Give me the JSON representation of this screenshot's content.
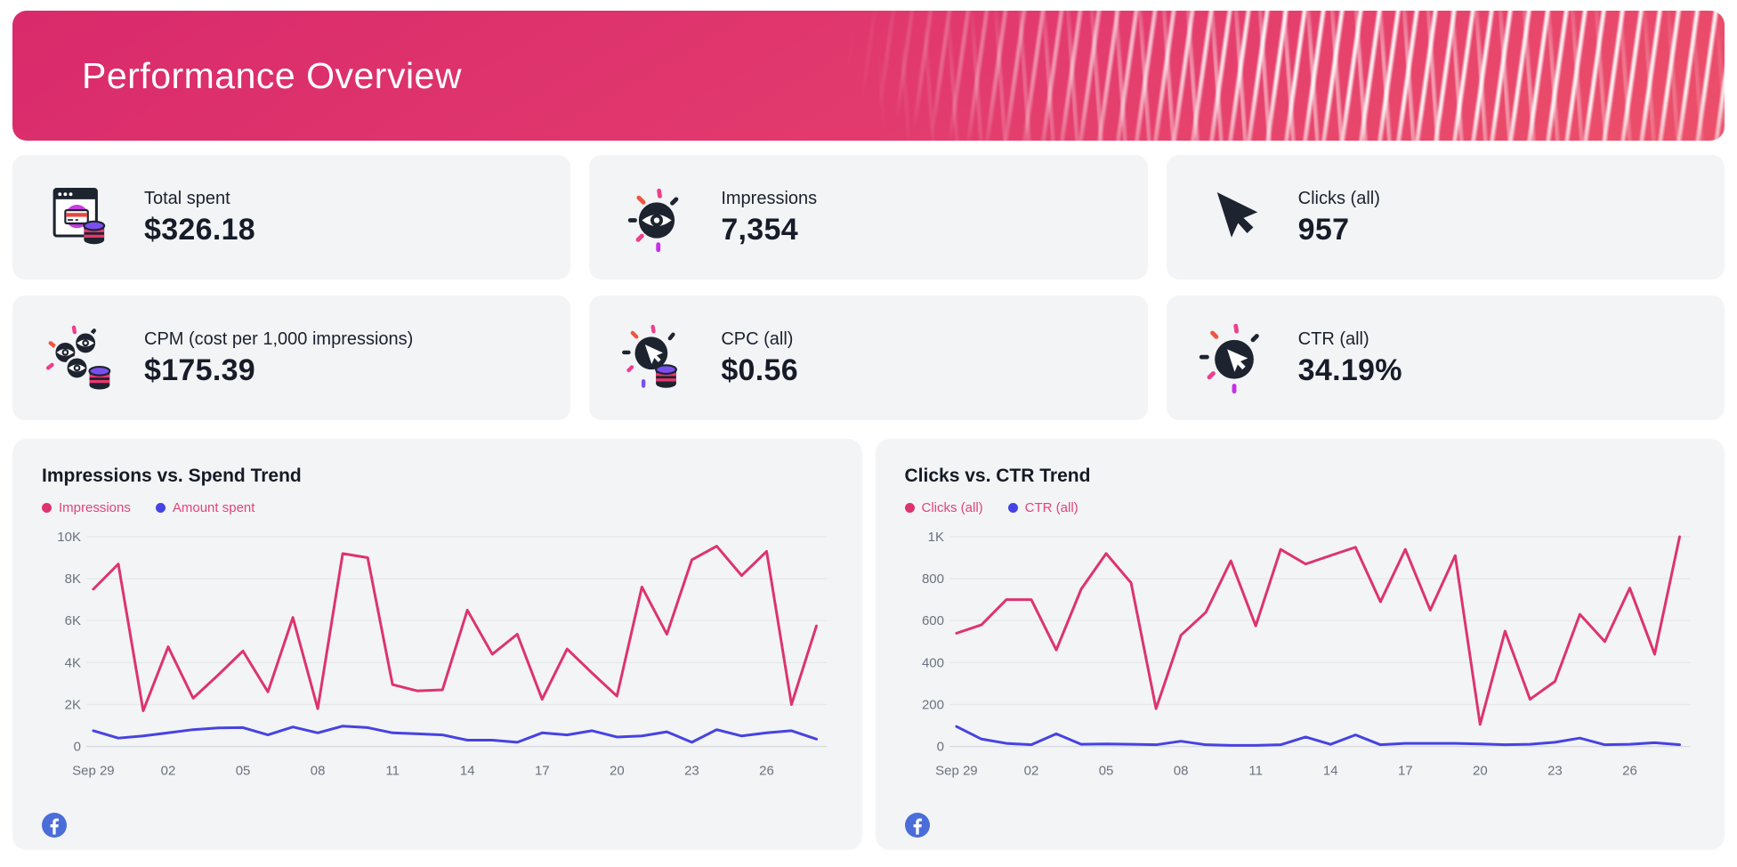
{
  "header": {
    "title": "Performance Overview"
  },
  "kpis": [
    {
      "label": "Total spent",
      "value": "$326.18",
      "icon": "spend-icon"
    },
    {
      "label": "Impressions",
      "value": "7,354",
      "icon": "impressions-eye-icon"
    },
    {
      "label": "Clicks (all)",
      "value": "957",
      "icon": "cursor-icon"
    },
    {
      "label": "CPM (cost per 1,000 impressions)",
      "value": "$175.39",
      "icon": "cpm-eyes-coins-icon"
    },
    {
      "label": "CPC (all)",
      "value": "$0.56",
      "icon": "cpc-cursor-coins-icon"
    },
    {
      "label": "CTR (all)",
      "value": "34.19%",
      "icon": "ctr-cursor-icon"
    }
  ],
  "colors": {
    "accent_pink": "#dd3370",
    "accent_blue": "#4643e2",
    "legend_text": "#e0457b",
    "card_bg": "#f3f4f6",
    "banner_gradient_start": "#d92a6b",
    "banner_gradient_end": "#ec5069",
    "facebook_blue": "#4a6dd9",
    "grid_line": "#e6e8ec",
    "axis_text": "#6b7280"
  },
  "chart_data": [
    {
      "type": "line",
      "title": "Impressions vs. Spend Trend",
      "x_tick_labels": [
        "Sep 29",
        "02",
        "05",
        "08",
        "11",
        "14",
        "17",
        "20",
        "23",
        "26"
      ],
      "x_tick_indices": [
        0,
        3,
        6,
        9,
        12,
        15,
        18,
        21,
        24,
        27
      ],
      "ylim": [
        0,
        10000
      ],
      "y_ticks": [
        {
          "v": 0,
          "label": "0"
        },
        {
          "v": 2000,
          "label": "2K"
        },
        {
          "v": 4000,
          "label": "4K"
        },
        {
          "v": 6000,
          "label": "6K"
        },
        {
          "v": 8000,
          "label": "8K"
        },
        {
          "v": 10000,
          "label": "10K"
        }
      ],
      "grid": true,
      "legend_position": "top-left",
      "source_icon": "facebook",
      "series": [
        {
          "name": "Impressions",
          "color": "#dd3370",
          "values": [
            7500,
            8700,
            1700,
            4750,
            2300,
            3400,
            4550,
            2600,
            6150,
            1800,
            9200,
            9000,
            2950,
            2650,
            2700,
            6500,
            4400,
            5350,
            2250,
            4650,
            3500,
            2400,
            7600,
            5350,
            8900,
            9550,
            8150,
            9300,
            2000,
            5750
          ]
        },
        {
          "name": "Amount spent",
          "color": "#4643e2",
          "values": [
            750,
            400,
            500,
            650,
            800,
            880,
            900,
            550,
            930,
            650,
            970,
            900,
            650,
            600,
            550,
            300,
            300,
            200,
            650,
            550,
            750,
            450,
            500,
            700,
            200,
            800,
            500,
            650,
            750,
            350
          ]
        }
      ]
    },
    {
      "type": "line",
      "title": "Clicks vs. CTR Trend",
      "x_tick_labels": [
        "Sep 29",
        "02",
        "05",
        "08",
        "11",
        "14",
        "17",
        "20",
        "23",
        "26"
      ],
      "x_tick_indices": [
        0,
        3,
        6,
        9,
        12,
        15,
        18,
        21,
        24,
        27
      ],
      "ylim": [
        0,
        1000
      ],
      "y_ticks": [
        {
          "v": 0,
          "label": "0"
        },
        {
          "v": 200,
          "label": "200"
        },
        {
          "v": 400,
          "label": "400"
        },
        {
          "v": 600,
          "label": "600"
        },
        {
          "v": 800,
          "label": "800"
        },
        {
          "v": 1000,
          "label": "1K"
        }
      ],
      "grid": true,
      "legend_position": "top-left",
      "source_icon": "facebook",
      "series": [
        {
          "name": "Clicks (all)",
          "color": "#dd3370",
          "values": [
            540,
            580,
            700,
            700,
            460,
            750,
            920,
            780,
            180,
            530,
            640,
            885,
            575,
            940,
            870,
            910,
            950,
            690,
            940,
            650,
            910,
            105,
            550,
            225,
            310,
            630,
            500,
            755,
            440,
            1000
          ]
        },
        {
          "name": "CTR (all)",
          "color": "#4643e2",
          "values": [
            95,
            35,
            15,
            8,
            60,
            10,
            12,
            10,
            8,
            25,
            8,
            5,
            5,
            8,
            45,
            10,
            55,
            8,
            15,
            15,
            15,
            12,
            8,
            10,
            20,
            40,
            8,
            10,
            18,
            8
          ]
        }
      ]
    }
  ]
}
